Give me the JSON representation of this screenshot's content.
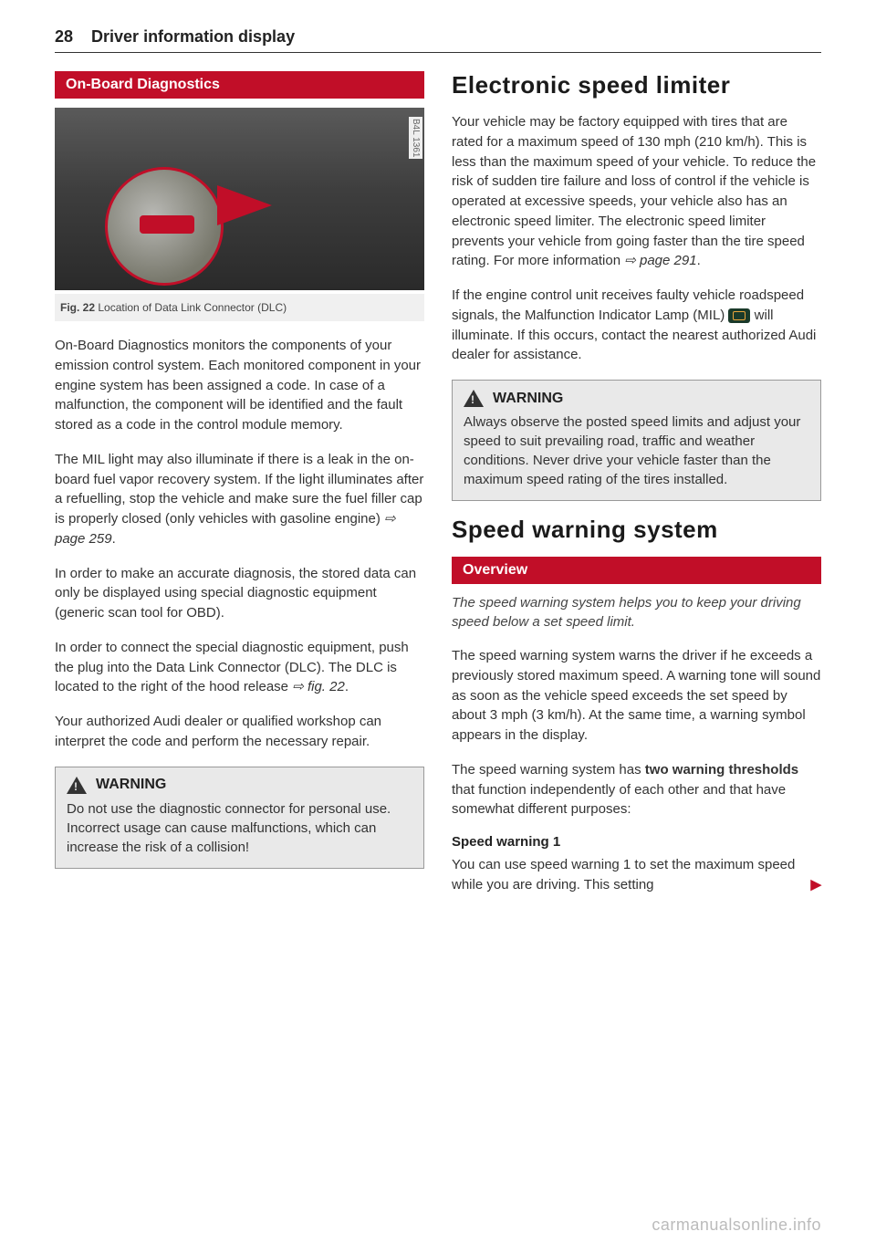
{
  "page": {
    "number": "28",
    "title": "Driver information display"
  },
  "left": {
    "redHeader": "On-Board Diagnostics",
    "figure": {
      "watermark": "B4L 1361",
      "num": "Fig. 22",
      "caption": "Location of Data Link Connector (DLC)"
    },
    "p1": "On-Board Diagnostics monitors the components of your emission control system. Each monitored component in your engine system has been assigned a code. In case of a malfunction, the component will be identified and the fault stored as a code in the control module memory.",
    "p2a": "The MIL light may also illuminate if there is a leak in the on-board fuel vapor recovery system. If the light illuminates after a refuelling, stop the vehicle and make sure the fuel filler cap is properly closed (only vehicles with gasoline engine) ",
    "p2ref": "page 259",
    "p2b": ".",
    "p3": "In order to make an accurate diagnosis, the stored data can only be displayed using special diagnostic equipment (generic scan tool for OBD).",
    "p4a": "In order to connect the special diagnostic equipment, push the plug into the Data Link Connector (DLC). The DLC is located to the right of the hood release ",
    "p4ref": "fig. 22",
    "p4b": ".",
    "p5": "Your authorized Audi dealer or qualified workshop can interpret the code and perform the necessary repair.",
    "warning": {
      "title": "WARNING",
      "text": "Do not use the diagnostic connector for personal use. Incorrect usage can cause malfunctions, which can increase the risk of a collision!"
    }
  },
  "right": {
    "h1a": "Electronic speed limiter",
    "p1a": "Your vehicle may be factory equipped with tires that are rated for a maximum speed of 130 mph (210 km/h). This is less than the maximum speed of your vehicle. To reduce the risk of sudden tire failure and loss of control if the vehicle is operated at excessive speeds, your vehicle also has an electronic speed limiter. The electronic speed limiter prevents your vehicle from going faster than the tire speed rating. For more information ",
    "p1ref": "page 291",
    "p1b": ".",
    "p2a": "If the engine control unit receives faulty vehicle roadspeed signals, the Malfunction Indicator Lamp (MIL) ",
    "p2b": " will illuminate. If this occurs, contact the nearest authorized Audi dealer for assistance.",
    "warning": {
      "title": "WARNING",
      "text": "Always observe the posted speed limits and adjust your speed to suit prevailing road, traffic and weather conditions. Never drive your vehicle faster than the maximum speed rating of the tires installed."
    },
    "h1b": "Speed warning system",
    "redHeader": "Overview",
    "intro": "The speed warning system helps you to keep your driving speed below a set speed limit.",
    "p3": "The speed warning system warns the driver if he exceeds a previously stored maximum speed. A warning tone will sound as soon as the vehicle speed exceeds the set speed by about 3 mph (3 km/h). At the same time, a warning symbol appears in the display.",
    "p4a": "The speed warning system has ",
    "p4bold": "two warning thresholds",
    "p4b": " that function independently of each other and that have somewhat different purposes:",
    "sub1": "Speed warning 1",
    "p5": "You can use speed warning 1 to set the maximum speed while you are driving. This setting",
    "cont": "▶"
  },
  "watermark": "carmanualsonline.info"
}
